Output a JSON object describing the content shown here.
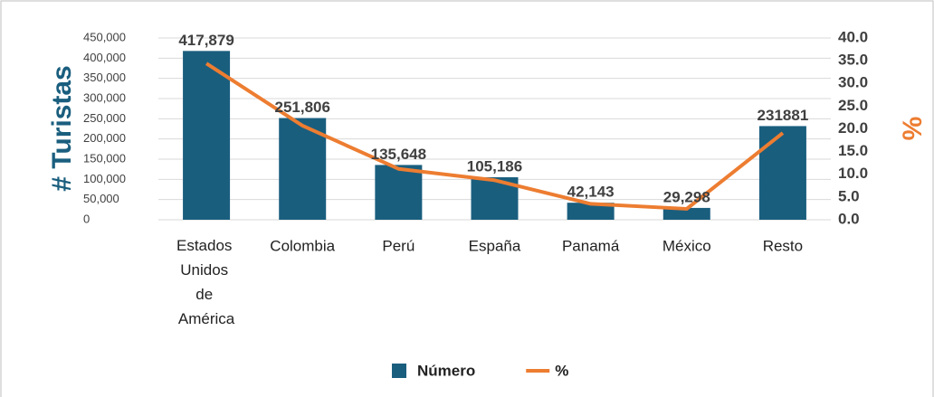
{
  "chart_data": {
    "type": "combo",
    "y_label": "# Turistas",
    "y2_label": "%",
    "categories": [
      "Estados Unidos de América",
      "Colombia",
      "Perú",
      "España",
      "Panamá",
      "México",
      "Resto"
    ],
    "series": [
      {
        "name": "Número",
        "type": "bar",
        "color": "#1a5e7e",
        "values": [
          417879,
          251806,
          135648,
          105186,
          42143,
          29298,
          231881
        ],
        "value_labels": [
          "417,879",
          "251,806",
          "135,648",
          "105,186",
          "42,143",
          "29,298",
          "231881"
        ]
      },
      {
        "name": "%",
        "type": "line",
        "axis": "y2",
        "color": "#ed7d31",
        "values": [
          34.4,
          20.7,
          11.2,
          8.7,
          3.5,
          2.4,
          19.1
        ]
      }
    ],
    "ylim": [
      0,
      450000
    ],
    "yticks": [
      {
        "value": 0,
        "label": "0"
      },
      {
        "value": 50000,
        "label": "50,000"
      },
      {
        "value": 100000,
        "label": "100,000"
      },
      {
        "value": 150000,
        "label": "150,000"
      },
      {
        "value": 200000,
        "label": "200,000"
      },
      {
        "value": 250000,
        "label": "250,000"
      },
      {
        "value": 300000,
        "label": "300,000"
      },
      {
        "value": 350000,
        "label": "350,000"
      },
      {
        "value": 400000,
        "label": "400,000"
      },
      {
        "value": 450000,
        "label": "450,000"
      }
    ],
    "y2lim": [
      0,
      40
    ],
    "y2ticks": [
      {
        "value": 0,
        "label": "0.0"
      },
      {
        "value": 5,
        "label": "5.0"
      },
      {
        "value": 10,
        "label": "10.0"
      },
      {
        "value": 15,
        "label": "15.0"
      },
      {
        "value": 20,
        "label": "20.0"
      },
      {
        "value": 25,
        "label": "25.0"
      },
      {
        "value": 30,
        "label": "30.0"
      },
      {
        "value": 35,
        "label": "35.0"
      },
      {
        "value": 40,
        "label": "40.0"
      }
    ],
    "grid": true,
    "legend": "bottom"
  }
}
